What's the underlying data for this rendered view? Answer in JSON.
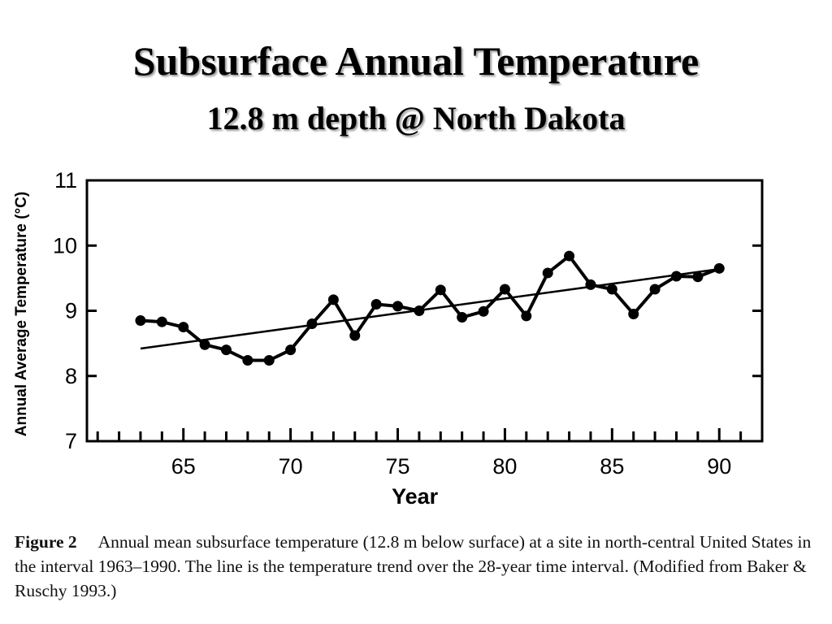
{
  "header": {
    "title": "Subsurface Annual Temperature",
    "subtitle": "12.8 m depth @ North Dakota"
  },
  "chart_data": {
    "type": "line",
    "xlabel": "Year",
    "ylabel": "Annual Average Temperature (°C)",
    "xlim": [
      60.5,
      92
    ],
    "ylim": [
      7,
      11
    ],
    "xticks": [
      65,
      70,
      75,
      80,
      85,
      90
    ],
    "yticks": [
      7,
      8,
      9,
      10,
      11
    ],
    "grid": false,
    "series": [
      {
        "x": [
          63,
          64,
          65,
          66,
          67,
          68,
          69,
          70,
          71,
          72,
          73,
          74,
          75,
          76,
          77,
          78,
          79,
          80,
          81,
          82,
          83,
          84,
          85,
          86,
          87,
          88,
          89,
          90
        ],
        "values": [
          8.85,
          8.83,
          8.75,
          8.48,
          8.4,
          8.24,
          8.24,
          8.4,
          8.8,
          9.17,
          8.62,
          9.1,
          9.07,
          9.0,
          9.32,
          8.9,
          8.99,
          9.33,
          8.92,
          9.58,
          9.84,
          9.4,
          9.33,
          8.95,
          9.33,
          9.53,
          9.52,
          9.65
        ]
      }
    ],
    "trend_line": {
      "x": [
        63,
        90
      ],
      "values": [
        8.42,
        9.64
      ]
    }
  },
  "caption": {
    "label": "Figure 2",
    "text": "Annual mean subsurface temperature (12.8 m below surface) at a site in north-central United States in the interval 1963–1990. The line is the temperature trend over the 28-year time interval. (Modified from Baker & Ruschy 1993.)"
  }
}
